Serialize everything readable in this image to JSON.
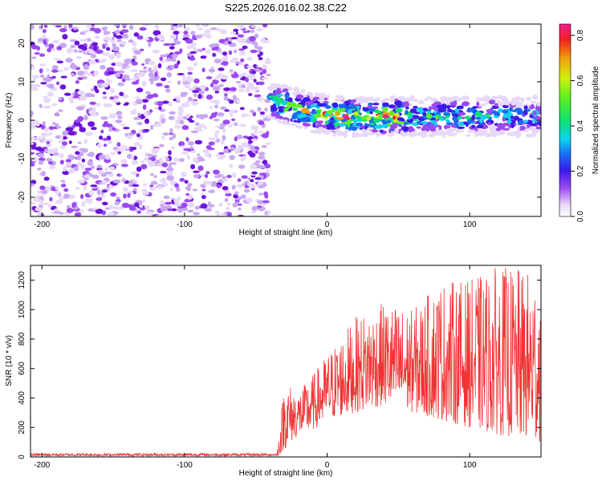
{
  "title": "S225.2026.016.02.38.C22",
  "chart_data": [
    {
      "type": "heatmap",
      "xlabel": "Height of straight line (km)",
      "ylabel": "Frequency (Hz)",
      "xlim": [
        -208,
        150
      ],
      "ylim": [
        -25,
        25
      ],
      "xticks": [
        -200,
        -100,
        0,
        100
      ],
      "yticks": [
        -20,
        -10,
        0,
        10,
        20
      ],
      "noise_region": {
        "x_from": -208,
        "x_to": -41,
        "description_level": "low amplitude, 0.0-0.25"
      },
      "signal_track": [
        {
          "x": -40,
          "freq": 5,
          "amp": 0.55
        },
        {
          "x": -30,
          "freq": 4,
          "amp": 0.6
        },
        {
          "x": -20,
          "freq": 3,
          "amp": 0.65
        },
        {
          "x": -10,
          "freq": 2,
          "amp": 0.6
        },
        {
          "x": 0,
          "freq": 1.5,
          "amp": 0.7
        },
        {
          "x": 13,
          "freq": 1,
          "amp": 0.85
        },
        {
          "x": 25,
          "freq": 1,
          "amp": 0.6
        },
        {
          "x": 41,
          "freq": 1,
          "amp": 0.85
        },
        {
          "x": 60,
          "freq": 1,
          "amp": 0.55
        },
        {
          "x": 80,
          "freq": 1,
          "amp": 0.5
        },
        {
          "x": 100,
          "freq": 1,
          "amp": 0.5
        },
        {
          "x": 120,
          "freq": 1,
          "amp": 0.45
        },
        {
          "x": 140,
          "freq": 1,
          "amp": 0.4
        }
      ],
      "colorbar": {
        "label": "Normalized spectral amplitude",
        "range": [
          0,
          0.85
        ],
        "ticks": [
          "0.0",
          "0.2",
          "0.4",
          "0.6",
          "0.8"
        ]
      }
    },
    {
      "type": "line",
      "xlabel": "Height of straight line (km)",
      "ylabel": "SNR (10 * v/v)",
      "xlim": [
        -208,
        150
      ],
      "ylim": [
        0,
        1300
      ],
      "xticks": [
        -200,
        -100,
        0,
        100
      ],
      "yticks": [
        0,
        200,
        400,
        600,
        800,
        1000,
        1200
      ],
      "series": [
        {
          "name": "SNR",
          "color": "#f03232",
          "envelope": [
            {
              "x": -208,
              "low": 0,
              "high": 30
            },
            {
              "x": -35,
              "low": 0,
              "high": 30
            },
            {
              "x": -30,
              "low": 50,
              "high": 520
            },
            {
              "x": -20,
              "low": 150,
              "high": 450
            },
            {
              "x": -10,
              "low": 180,
              "high": 560
            },
            {
              "x": 0,
              "low": 250,
              "high": 700
            },
            {
              "x": 20,
              "low": 300,
              "high": 950
            },
            {
              "x": 40,
              "low": 350,
              "high": 1050
            },
            {
              "x": 60,
              "low": 300,
              "high": 1000
            },
            {
              "x": 80,
              "low": 250,
              "high": 1200
            },
            {
              "x": 100,
              "low": 200,
              "high": 1200
            },
            {
              "x": 120,
              "low": 150,
              "high": 1300
            },
            {
              "x": 150,
              "low": 100,
              "high": 1250
            }
          ]
        }
      ]
    }
  ]
}
